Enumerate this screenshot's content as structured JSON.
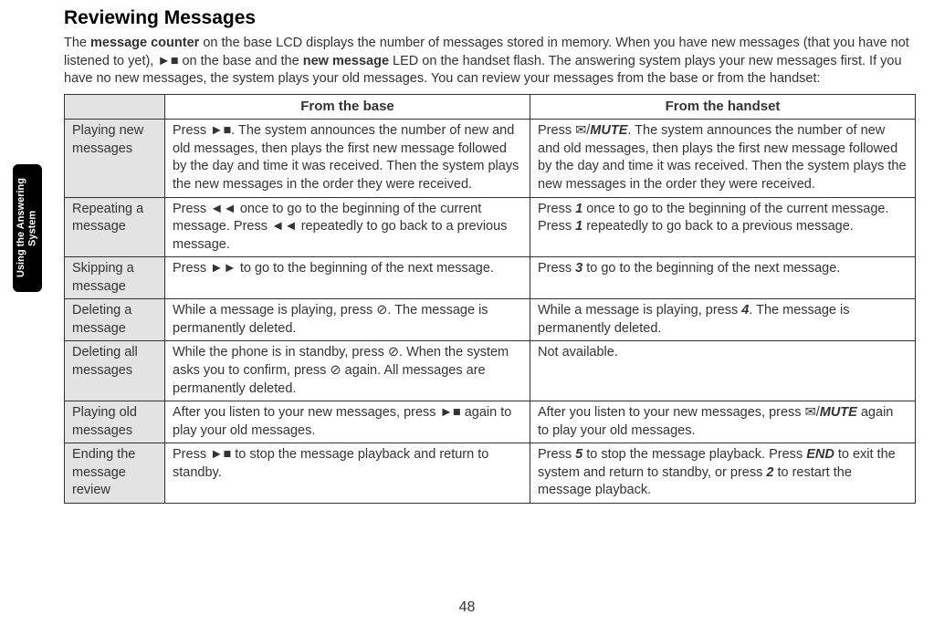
{
  "title": "Reviewing Messages",
  "intro_html": "The <strong>message counter</strong> on the base LCD displays the number of messages stored in memory. When you have new messages (that you have not listened to yet), <span class='icon' data-name='play-stop-icon'>►■</span> on the base and the <strong>new message</strong> LED on the handset flash. The answering system plays your new messages first. If you have no new messages, the system plays your old messages. You can review your messages from the base or from the handset:",
  "header": {
    "col1": "From the base",
    "col2": "From the handset"
  },
  "rows": [
    {
      "label": "Playing new messages",
      "base": "Press <span class='icon' data-name='play-stop-icon'>►■</span>. The system announces the number of new and old messages, then plays the first new message followed by the day and time it was received. Then the system plays the new messages in the order they were received.",
      "handset": "Press <span class='icon' data-name='envelope-icon'>✉</span>/<span class='mute'>MUTE</span>. The system announces the number of new and old messages, then plays the first new message followed by the day and time it was received. Then the system plays the new messages in the order they were received."
    },
    {
      "label": "Repeating a message",
      "base": "Press <span class='icon' data-name='rewind-icon'>◄◄</span> once to go to the beginning of the current message. Press <span class='icon' data-name='rewind-icon'>◄◄</span> repeatedly to go back to a previous message.",
      "handset": "Press <em class='key'>1</em> once to go to the beginning of the current message. Press <em class='key'>1</em> repeatedly to go back to a previous message."
    },
    {
      "label": "Skipping a message",
      "base": "Press <span class='icon' data-name='forward-icon'>►►</span> to go to the beginning of the next message.",
      "handset": "Press <em class='key'>3</em> to go to the beginning of the next message."
    },
    {
      "label": "Deleting a message",
      "base": "While a message is playing, press <span class='icon' data-name='delete-icon'>⊘</span>. The message is permanently deleted.",
      "handset": "While a message is playing, press <em class='key'>4</em>. The message is permanently deleted."
    },
    {
      "label": "Deleting all messages",
      "base": "While the phone is in standby, press <span class='icon' data-name='delete-icon'>⊘</span>. When the system asks you to confirm, press <span class='icon' data-name='delete-icon'>⊘</span> again. All messages are permanently deleted.",
      "handset": "Not available."
    },
    {
      "label": "Playing old messages",
      "base": "After you listen to your new messages, press <span class='icon' data-name='play-stop-icon'>►■</span> again to play your old messages.",
      "handset": "After you listen to your new messages, press <span class='icon' data-name='envelope-icon'>✉</span>/<span class='mute'>MUTE</span> again to play your old messages."
    },
    {
      "label": "Ending the message review",
      "base": "Press <span class='icon' data-name='play-stop-icon'>►■</span> to stop the message playback and return to standby.",
      "handset": "Press <em class='key'>5</em> to stop the message playback. Press <em class='key'>END</em> to exit the system and return to standby, or press <em class='key'>2</em> to restart the message playback."
    }
  ],
  "sidebar": "Using the Answering System",
  "page": "48",
  "colors": {
    "header_bg": "#e3e3e3",
    "border": "#333333",
    "text": "#333333",
    "tab_bg": "#000000",
    "tab_text": "#ffffff"
  }
}
